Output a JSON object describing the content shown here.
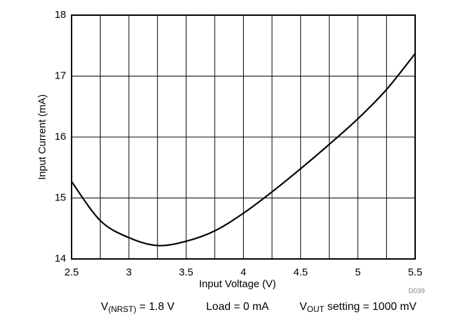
{
  "chart_data": {
    "type": "line",
    "x_label": "Input Voltage (V)",
    "y_label": "Input Current (mA)",
    "figure_id": "D039",
    "x": [
      2.5,
      2.75,
      3.0,
      3.25,
      3.5,
      3.75,
      4.0,
      4.25,
      4.5,
      4.75,
      5.0,
      5.25,
      5.5
    ],
    "series": [
      {
        "color": "#000000",
        "values": [
          15.27,
          14.63,
          14.35,
          14.22,
          14.29,
          14.46,
          14.75,
          15.1,
          15.48,
          15.88,
          16.3,
          16.78,
          17.37
        ]
      }
    ],
    "xlim": [
      2.5,
      5.5
    ],
    "xticks": [
      2.5,
      3,
      3.5,
      4,
      4.5,
      5,
      5.5
    ],
    "xgrid_minor": [
      2.75,
      3.25,
      3.75,
      4.25,
      4.75,
      5.25
    ],
    "ylim": [
      14,
      18
    ],
    "yticks": [
      14,
      15,
      16,
      17,
      18
    ],
    "grid": true,
    "annotations": [
      {
        "text": "V",
        "sub": "(NRST)",
        "rest": " = 1.8 V"
      },
      {
        "text": "Load = 0 mA"
      },
      {
        "text": "V",
        "sub": "OUT",
        "rest": " setting = 1000 mV"
      }
    ]
  }
}
